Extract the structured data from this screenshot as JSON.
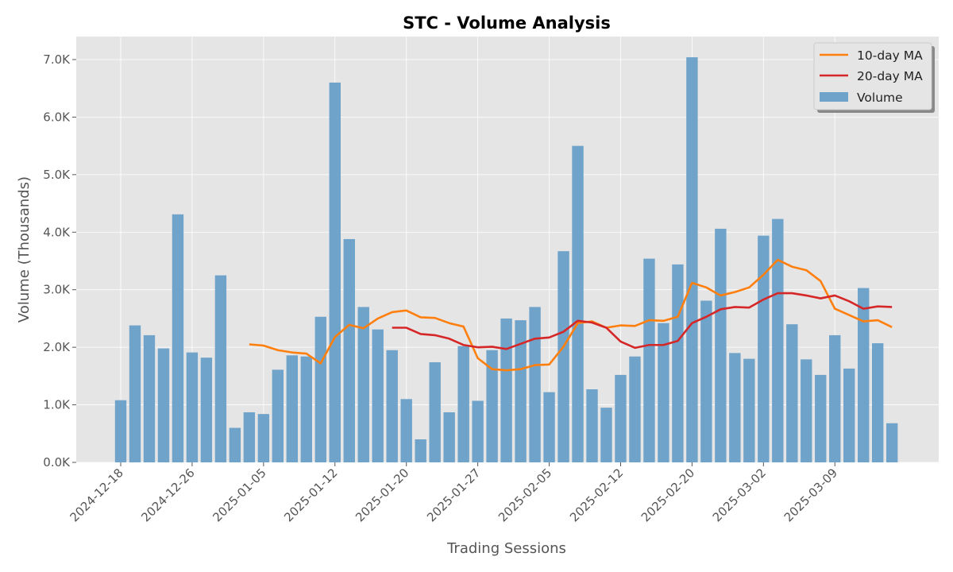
{
  "chart_data": {
    "type": "bar",
    "title": "STC - Volume Analysis",
    "xlabel": "Trading Sessions",
    "ylabel": "Volume (Thousands)",
    "ylim": [
      0,
      7400
    ],
    "yticks": [
      0,
      1000,
      2000,
      3000,
      4000,
      5000,
      6000,
      7000
    ],
    "ytick_labels": [
      "0.0K",
      "1.0K",
      "2.0K",
      "3.0K",
      "4.0K",
      "5.0K",
      "6.0K",
      "7.0K"
    ],
    "xticks": [
      {
        "index": 0,
        "label": "2024-12-18"
      },
      {
        "index": 5,
        "label": "2024-12-26"
      },
      {
        "index": 10,
        "label": "2025-01-05"
      },
      {
        "index": 15,
        "label": "2025-01-12"
      },
      {
        "index": 20,
        "label": "2025-01-20"
      },
      {
        "index": 25,
        "label": "2025-01-27"
      },
      {
        "index": 30,
        "label": "2025-02-05"
      },
      {
        "index": 35,
        "label": "2025-02-12"
      },
      {
        "index": 40,
        "label": "2025-02-20"
      },
      {
        "index": 45,
        "label": "2025-03-02"
      },
      {
        "index": 50,
        "label": "2025-03-09"
      }
    ],
    "grid": true,
    "legend_position": "top-right",
    "series": [
      {
        "name": "Volume",
        "kind": "bar",
        "color": "#6fa3c9",
        "values": [
          1080,
          2380,
          2210,
          1980,
          4310,
          1910,
          1820,
          3250,
          600,
          870,
          840,
          1610,
          1860,
          1840,
          2530,
          6600,
          3880,
          2700,
          2310,
          1950,
          1100,
          400,
          1740,
          870,
          2020,
          1070,
          1950,
          2500,
          2470,
          2700,
          1220,
          3670,
          5500,
          1270,
          950,
          1520,
          1840,
          3540,
          2420,
          3440,
          7040,
          2810,
          4060,
          1900,
          1800,
          3940,
          4230,
          2400,
          1790,
          1520,
          2210,
          1630,
          3030,
          2070,
          680
        ]
      },
      {
        "name": "10-day MA",
        "kind": "line",
        "color": "#ff7f0e",
        "values": [
          null,
          null,
          null,
          null,
          null,
          null,
          null,
          null,
          null,
          2050,
          2030,
          1950,
          1910,
          1890,
          1720,
          2180,
          2390,
          2330,
          2500,
          2610,
          2640,
          2520,
          2510,
          2420,
          2360,
          1810,
          1620,
          1600,
          1620,
          1690,
          1700,
          2010,
          2420,
          2450,
          2340,
          2380,
          2370,
          2470,
          2460,
          2530,
          3120,
          3040,
          2900,
          2960,
          3040,
          3260,
          3520,
          3400,
          3340,
          3150,
          2670,
          2560,
          2450,
          2470,
          2350
        ]
      },
      {
        "name": "20-day MA",
        "kind": "line",
        "color": "#d62728",
        "values": [
          null,
          null,
          null,
          null,
          null,
          null,
          null,
          null,
          null,
          null,
          null,
          null,
          null,
          null,
          null,
          null,
          null,
          null,
          null,
          2340,
          2340,
          2230,
          2210,
          2150,
          2040,
          2000,
          2010,
          1970,
          2060,
          2150,
          2170,
          2270,
          2460,
          2430,
          2340,
          2100,
          1990,
          2040,
          2040,
          2110,
          2420,
          2530,
          2660,
          2700,
          2690,
          2830,
          2940,
          2940,
          2900,
          2850,
          2900,
          2800,
          2670,
          2710,
          2700
        ]
      }
    ]
  }
}
